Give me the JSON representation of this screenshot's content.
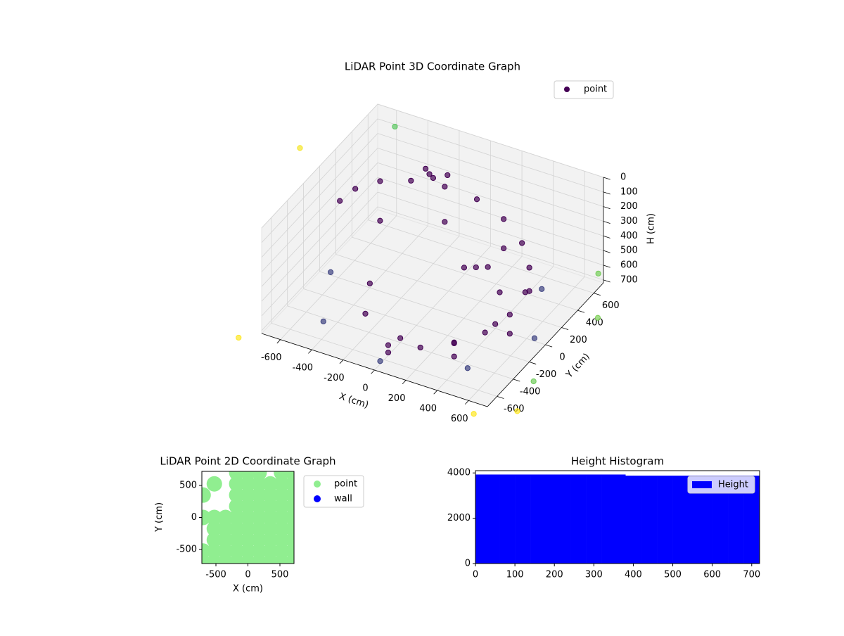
{
  "chart_data": [
    {
      "type": "scatter3d",
      "title": "LiDAR Point 3D Coordinate Graph",
      "xlabel": "X (cm)",
      "ylabel": "Y (cm)",
      "zlabel": "H (cm)",
      "xlim": [
        -720,
        720
      ],
      "ylim": [
        -720,
        720
      ],
      "zlim": [
        0,
        720
      ],
      "zinverted": true,
      "xticks": [
        -600,
        -400,
        -200,
        0,
        200,
        400,
        600
      ],
      "yticks": [
        -600,
        -400,
        -200,
        0,
        200,
        400,
        600
      ],
      "zticks": [
        0,
        100,
        200,
        300,
        400,
        500,
        600,
        700
      ],
      "colormap": "viridis",
      "grid": true,
      "legend": "upper right",
      "series": [
        {
          "name": "point",
          "color": "#440154",
          "x": [
            0,
            188,
            354,
            476,
            542,
            542,
            476,
            354,
            188,
            0,
            -188,
            -354,
            -476,
            -542,
            -542,
            -650,
            -460,
            0,
            460,
            650,
            460,
            -400,
            -283,
            0,
            283,
            400,
            283,
            0,
            354,
            542,
            476,
            188,
            -188,
            -476,
            -200,
            -150,
            -250,
            -100,
            200,
            250,
            150,
            -1000,
            900,
            850,
            900,
            -800,
            700,
            -600,
            800
          ],
          "y": [
            -550,
            -517,
            -421,
            -275,
            -96,
            96,
            275,
            421,
            517,
            550,
            517,
            421,
            275,
            96,
            -96,
            0,
            -460,
            -650,
            -460,
            0,
            460,
            0,
            -283,
            -400,
            -283,
            0,
            283,
            -550,
            -421,
            -96,
            275,
            517,
            517,
            275,
            350,
            300,
            400,
            380,
            150,
            200,
            100,
            300,
            -700,
            -400,
            300,
            -850,
            -850,
            700,
            500
          ],
          "z": [
            650,
            620,
            590,
            560,
            520,
            480,
            440,
            400,
            350,
            300,
            260,
            220,
            180,
            150,
            120,
            700,
            700,
            700,
            700,
            700,
            700,
            690,
            690,
            690,
            690,
            690,
            680,
            700,
            680,
            650,
            600,
            550,
            500,
            450,
            80,
            60,
            90,
            70,
            460,
            470,
            450,
            150,
            700,
            690,
            650,
            700,
            700,
            100,
            500
          ]
        }
      ]
    },
    {
      "type": "scatter",
      "title": "LiDAR Point 2D Coordinate Graph",
      "xlabel": "X (cm)",
      "ylabel": "Y (cm)",
      "xlim": [
        -720,
        720
      ],
      "ylim": [
        -720,
        720
      ],
      "xticks": [
        -500,
        0,
        500
      ],
      "yticks": [
        -500,
        0,
        500
      ],
      "legend": "outside right",
      "series": [
        {
          "name": "point",
          "color": "#90ee90",
          "x": [
            -175,
            0,
            175,
            525,
            700,
            -525,
            -175,
            0,
            175,
            350,
            525,
            700,
            -700,
            -175,
            0,
            175,
            350,
            525,
            700,
            -175,
            0,
            175,
            350,
            525,
            700,
            -700,
            -525,
            -350,
            -175,
            0,
            175,
            350,
            525,
            700,
            -525,
            -350,
            -175,
            0,
            175,
            350,
            525,
            700,
            -525,
            -350,
            -175,
            0,
            175,
            350,
            525,
            700,
            -700,
            -525,
            -350,
            -175,
            0,
            175,
            350,
            525,
            700,
            -700,
            -525,
            -350,
            -175,
            0,
            175,
            350,
            525,
            700
          ],
          "y": [
            700,
            700,
            700,
            700,
            700,
            525,
            525,
            525,
            525,
            525,
            525,
            525,
            350,
            350,
            350,
            350,
            350,
            350,
            350,
            175,
            175,
            175,
            175,
            175,
            175,
            0,
            0,
            0,
            0,
            0,
            0,
            0,
            0,
            0,
            -175,
            -175,
            -175,
            -175,
            -175,
            -175,
            -175,
            -175,
            -350,
            -350,
            -350,
            -350,
            -350,
            -350,
            -350,
            -350,
            -525,
            -525,
            -525,
            -525,
            -525,
            -525,
            -525,
            -525,
            -525,
            -700,
            -700,
            -700,
            -700,
            -700,
            -700,
            -700,
            -700,
            -700
          ]
        },
        {
          "name": "wall",
          "color": "#0000ff",
          "x": [],
          "y": []
        }
      ]
    },
    {
      "type": "histogram",
      "title": "Height Histogram",
      "bins": [
        0,
        20,
        40,
        60,
        80,
        100,
        120,
        140,
        160,
        180,
        200,
        220,
        240,
        260,
        280,
        300,
        320,
        340,
        360,
        380,
        400,
        420,
        440,
        460,
        480,
        500,
        520,
        540,
        560,
        580,
        600,
        620,
        640,
        660,
        680,
        700,
        720
      ],
      "series": [
        {
          "name": "Height",
          "color": "#0000ff",
          "values": [
            3930,
            3930,
            3930,
            3930,
            3930,
            3930,
            3930,
            3930,
            3930,
            3930,
            3930,
            3930,
            3930,
            3930,
            3930,
            3930,
            3930,
            3930,
            3930,
            3880,
            3880,
            3880,
            3880,
            3880,
            3880,
            3880,
            3880,
            3880,
            3880,
            3880,
            3880,
            3880,
            3880,
            3880,
            3880,
            3880
          ]
        }
      ],
      "xlim": [
        0,
        720
      ],
      "ylim": [
        0,
        4100
      ],
      "xticks": [
        0,
        100,
        200,
        300,
        400,
        500,
        600,
        700
      ],
      "yticks": [
        0,
        2000,
        4000
      ],
      "legend": "upper right"
    }
  ]
}
